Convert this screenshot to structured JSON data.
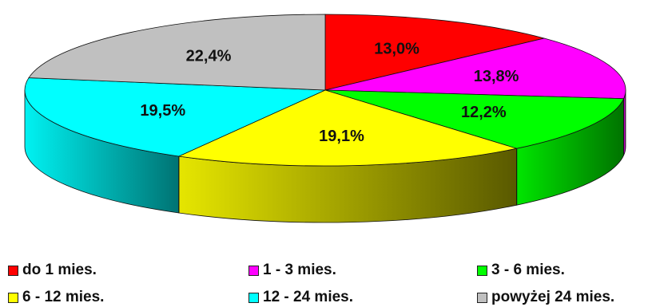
{
  "chart_data": {
    "type": "pie",
    "style": "3d",
    "categories": [
      "do 1 mies.",
      "1 - 3 mies.",
      "3 - 6 mies.",
      "6 - 12 mies.",
      "12 - 24 mies.",
      "powyżej 24 mies."
    ],
    "values": [
      13.0,
      13.8,
      12.2,
      19.1,
      19.5,
      22.4
    ],
    "labels": [
      "13,0%",
      "13,8%",
      "12,2%",
      "19,1%",
      "19,5%",
      "22,4%"
    ],
    "colors": [
      "#ff0000",
      "#ff00ff",
      "#00ff00",
      "#ffff00",
      "#00ffff",
      "#c0c0c0"
    ],
    "legend_position": "bottom",
    "title": "",
    "legend": [
      {
        "label": "do 1 mies.",
        "color": "#ff0000"
      },
      {
        "label": "1 - 3 mies.",
        "color": "#ff00ff"
      },
      {
        "label": "3 - 6 mies.",
        "color": "#00ff00"
      },
      {
        "label": "6 - 12 mies.",
        "color": "#ffff00"
      },
      {
        "label": "12 - 24 mies.",
        "color": "#00ffff"
      },
      {
        "label": "powyżej 24 mies.",
        "color": "#c0c0c0"
      }
    ]
  }
}
